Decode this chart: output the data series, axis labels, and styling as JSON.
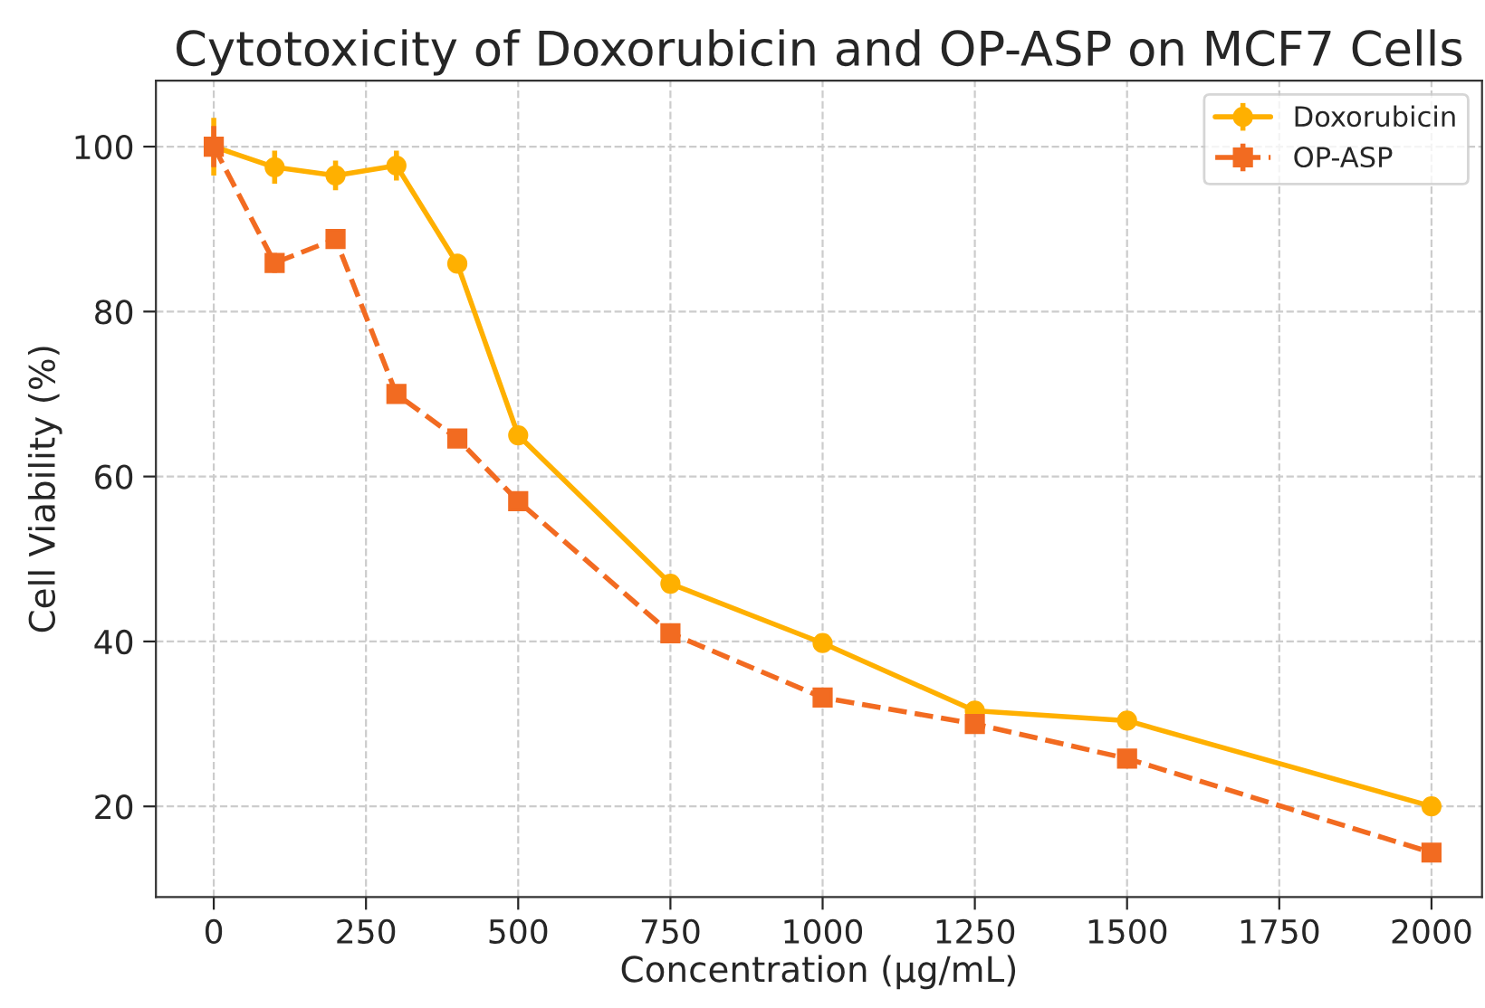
{
  "chart_data": {
    "type": "line",
    "title": "Cytotoxicity of Doxorubicin and OP-ASP on MCF7 Cells",
    "xlabel": "Concentration (μg/mL)",
    "ylabel": "Cell Viability (%)",
    "x": [
      0,
      100,
      200,
      300,
      400,
      500,
      750,
      1000,
      1250,
      1500,
      2000
    ],
    "series": [
      {
        "name": "Doxorubicin",
        "color": "#ffb000",
        "marker": "circle",
        "line_style": "solid",
        "values": [
          100,
          97.5,
          96.5,
          97.7,
          85.8,
          65,
          47,
          39.8,
          31.6,
          30.4,
          20
        ],
        "errors": [
          3.5,
          2,
          1.8,
          1.8,
          1,
          1,
          1,
          1,
          1,
          1,
          1
        ]
      },
      {
        "name": "OP-ASP",
        "color": "#f26b21",
        "marker": "square",
        "line_style": "dashed",
        "values": [
          100,
          85.9,
          88.8,
          70,
          64.6,
          57,
          41,
          33.2,
          30,
          25.8,
          14.4
        ],
        "errors": [
          2.5,
          1.2,
          1,
          1,
          1,
          1,
          1,
          1,
          1,
          1,
          1
        ]
      }
    ],
    "xlim": [
      -95,
      2083
    ],
    "ylim": [
      9,
      108
    ],
    "xticks": [
      0,
      250,
      500,
      750,
      1000,
      1250,
      1500,
      1750,
      2000
    ],
    "yticks": [
      20,
      40,
      60,
      80,
      100
    ],
    "grid": true,
    "legend": "top right"
  }
}
